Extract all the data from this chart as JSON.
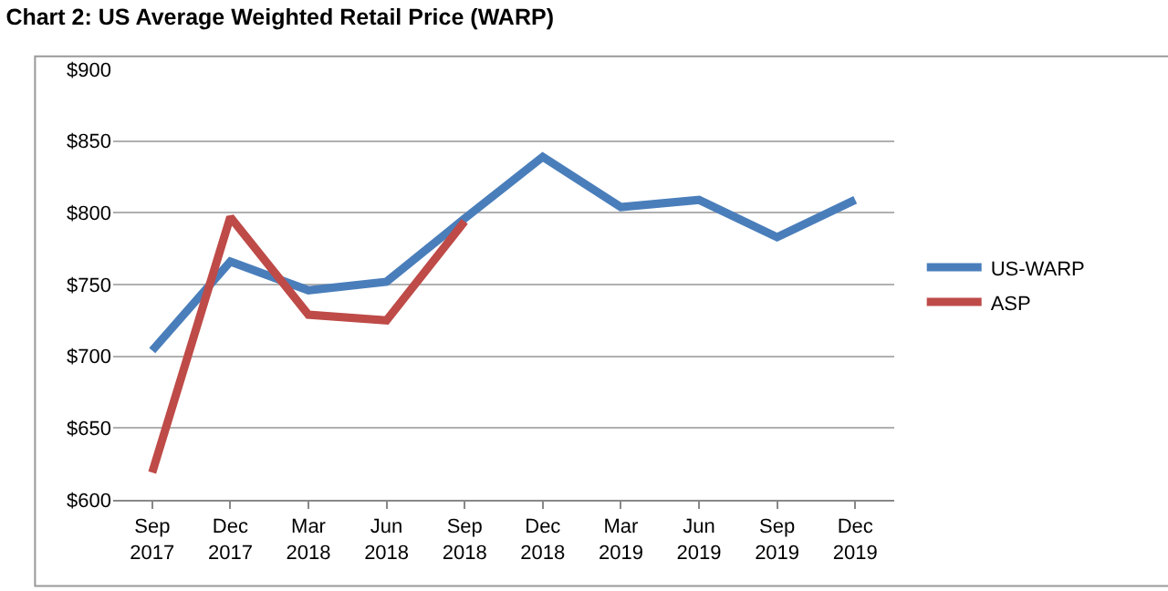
{
  "chart_data": {
    "type": "line",
    "title": "Chart 2: US Average Weighted Retail Price (WARP)",
    "categories": [
      "Sep\n2017",
      "Dec\n2017",
      "Mar\n2018",
      "Jun\n2018",
      "Sep\n2018",
      "Dec\n2018",
      "Mar\n2019",
      "Jun\n2019",
      "Sep\n2019",
      "Dec\n2019"
    ],
    "series": [
      {
        "name": "US-WARP",
        "color": "#4a7ebb",
        "values": [
          704,
          766,
          746,
          752,
          796,
          839,
          804,
          809,
          783,
          809
        ]
      },
      {
        "name": "ASP",
        "color": "#be4b48",
        "values": [
          619,
          797,
          729,
          725,
          794,
          null,
          null,
          null,
          null,
          null
        ]
      }
    ],
    "ylim": [
      600,
      900
    ],
    "yticks": [
      {
        "value": 600,
        "label": "$600"
      },
      {
        "value": 650,
        "label": "$650"
      },
      {
        "value": 700,
        "label": "$700"
      },
      {
        "value": 750,
        "label": "$750"
      },
      {
        "value": 800,
        "label": "$800"
      },
      {
        "value": 850,
        "label": "$850"
      },
      {
        "value": 900,
        "label": "$900"
      }
    ],
    "grid": "y",
    "legend": "right",
    "marker": "none",
    "line_style": "solid"
  }
}
